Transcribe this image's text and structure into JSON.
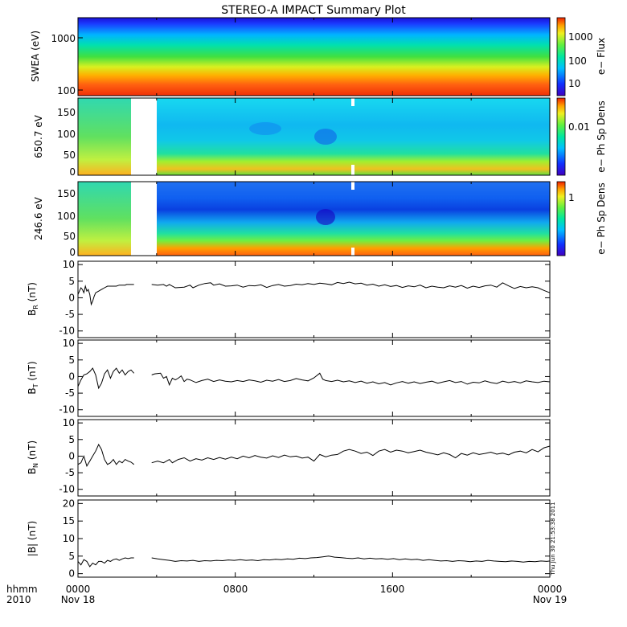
{
  "title": "STEREO-A IMPACT Summary Plot",
  "footer": {
    "axis_label_1": "hhmm",
    "axis_label_2": "2010",
    "x_ticks": [
      "0000",
      "0800",
      "1600",
      "0000"
    ],
    "date_start": "Nov 18",
    "date_end": "Nov 19"
  },
  "timestamp": "Thu Jun 30 21:53:38 2011",
  "chart_data": [
    {
      "type": "heatmap",
      "ylabel": "SWEA (eV)",
      "yscale": "log",
      "yticks": [
        "100",
        "1000"
      ],
      "colorbar": {
        "label": "e− Flux",
        "ticks": [
          "10",
          "100",
          "1000"
        ]
      }
    },
    {
      "type": "heatmap",
      "ylabel": "650.7 eV",
      "ylim": [
        0,
        180
      ],
      "yticks": [
        "0",
        "50",
        "100",
        "150"
      ],
      "colorbar": {
        "label": "e− Ph Sp Dens",
        "ticks": [
          "0.01"
        ]
      }
    },
    {
      "type": "heatmap",
      "ylabel": "246.6 eV",
      "ylim": [
        0,
        180
      ],
      "yticks": [
        "0",
        "50",
        "100",
        "150"
      ],
      "colorbar": {
        "label": "e− Ph Sp Dens",
        "ticks": [
          "1"
        ]
      }
    },
    {
      "type": "line",
      "ylabel": "B",
      "ylabel_sub": "R",
      "ylabel_unit": "(nT)",
      "ylim": [
        -12,
        11
      ],
      "yticks": [
        "10",
        "5",
        "0",
        "-5",
        "-10"
      ],
      "series": [
        {
          "segments": [
            {
              "x": [
                0.0,
                0.25,
                0.5,
                0.75,
                1.0,
                1.25,
                1.5,
                1.75,
                2.0,
                2.25,
                2.5,
                2.75,
                3.0,
                3.5,
                4.0,
                4.5,
                5.0,
                5.5,
                6.0,
                6.5,
                7.0,
                7.5,
                8.0,
                8.25,
                8.5,
                9.0,
                9.5
              ],
              "y": [
                1.0,
                2.0,
                3.0,
                2.5,
                1.5,
                3.5,
                2.0,
                2.5,
                1.0,
                -2.0,
                -1.0,
                0.5,
                1.5,
                2.0,
                2.5,
                3.0,
                3.5,
                3.5,
                3.5,
                3.5,
                3.8,
                3.8,
                3.8,
                4.0,
                4.0,
                4.0,
                4.0
              ]
            },
            {
              "x": [
                12.5,
                13.5,
                14.5,
                15.0,
                15.5,
                16.5,
                18.0,
                19.0,
                19.5,
                20.5,
                21.5,
                22.5,
                23.0,
                24.0,
                25.0,
                26.0,
                27.0,
                28.0,
                29.0,
                30.0,
                31.0,
                32.0,
                33.0,
                34.0,
                35.0,
                36.0,
                37.0,
                38.0,
                39.0,
                40.0,
                41.0,
                42.0,
                43.0,
                44.0,
                45.0,
                46.0,
                47.0,
                48.0,
                49.0,
                50.0,
                51.0,
                52.0,
                53.0,
                54.0,
                55.0,
                56.0,
                57.0,
                58.0,
                59.0,
                60.0,
                61.0,
                62.0,
                63.0,
                64.0,
                65.0,
                66.0,
                67.0,
                68.0,
                69.0,
                70.0,
                71.0,
                72.0,
                73.0,
                74.0,
                75.0,
                76.0,
                77.0,
                78.0,
                79.0,
                80.0
              ],
              "y": [
                4.0,
                3.8,
                4.0,
                3.5,
                4.0,
                3.0,
                3.2,
                3.8,
                3.0,
                3.8,
                4.3,
                4.5,
                3.8,
                4.2,
                3.5,
                3.6,
                3.8,
                3.2,
                3.7,
                3.6,
                3.9,
                3.1,
                3.7,
                4.0,
                3.5,
                3.7,
                4.1,
                3.9,
                4.3,
                4.0,
                4.4,
                4.2,
                3.9,
                4.6,
                4.3,
                4.7,
                4.2,
                4.4,
                3.8,
                4.1,
                3.5,
                3.9,
                3.4,
                3.7,
                3.1,
                3.6,
                3.3,
                3.8,
                3.0,
                3.5,
                3.2,
                3.0,
                3.6,
                3.2,
                3.7,
                2.9,
                3.5,
                3.1,
                3.6,
                3.8,
                3.2,
                4.5,
                3.6,
                2.8,
                3.4,
                3.0,
                3.3,
                3.0,
                2.2,
                1.5
              ]
            }
          ]
        }
      ]
    },
    {
      "type": "line",
      "ylabel": "B",
      "ylabel_sub": "T",
      "ylabel_unit": "(nT)",
      "ylim": [
        -12,
        11
      ],
      "yticks": [
        "10",
        "5",
        "0",
        "-5",
        "-10"
      ],
      "series": [
        {
          "segments": [
            {
              "x": [
                0.0,
                0.5,
                1.0,
                1.5,
                2.0,
                2.5,
                3.0,
                3.5,
                4.0,
                4.5,
                5.0,
                5.5,
                6.0,
                6.5,
                7.0,
                7.5,
                8.0,
                8.5,
                9.0,
                9.5
              ],
              "y": [
                -3.0,
                -1.0,
                0.5,
                0.8,
                1.5,
                2.5,
                0.5,
                -3.5,
                -2.0,
                0.8,
                2.0,
                -0.5,
                1.5,
                2.5,
                1.0,
                2.0,
                0.5,
                1.5,
                2.0,
                1.0
              ]
            },
            {
              "x": [
                12.5,
                13.0,
                14.0,
                14.5,
                15.0,
                15.5,
                16.0,
                16.5,
                17.0,
                17.5,
                18.0,
                18.5,
                19.0,
                20.0,
                21.0,
                22.0,
                23.0,
                24.0,
                25.0,
                26.0,
                27.0,
                28.0,
                29.0,
                30.0,
                31.0,
                32.0,
                33.0,
                34.0,
                35.0,
                36.0,
                37.0,
                38.0,
                39.0,
                40.0,
                41.0,
                41.5,
                42.0,
                43.0,
                44.0,
                45.0,
                46.0,
                47.0,
                48.0,
                49.0,
                50.0,
                51.0,
                52.0,
                53.0,
                54.0,
                55.0,
                56.0,
                57.0,
                58.0,
                59.0,
                60.0,
                61.0,
                62.0,
                63.0,
                64.0,
                65.0,
                66.0,
                67.0,
                68.0,
                69.0,
                70.0,
                71.0,
                72.0,
                73.0,
                74.0,
                75.0,
                76.0,
                77.0,
                78.0,
                79.0,
                80.0
              ],
              "y": [
                0.5,
                0.8,
                1.0,
                -0.5,
                0.0,
                -2.5,
                -0.5,
                -1.0,
                -0.5,
                0.2,
                -1.5,
                -0.8,
                -1.0,
                -1.8,
                -1.2,
                -0.8,
                -1.5,
                -1.0,
                -1.4,
                -1.6,
                -1.2,
                -1.5,
                -1.0,
                -1.3,
                -1.7,
                -1.1,
                -1.4,
                -0.9,
                -1.5,
                -1.2,
                -0.6,
                -1.0,
                -1.3,
                -0.4,
                1.0,
                -0.8,
                -1.2,
                -1.5,
                -1.1,
                -1.6,
                -1.3,
                -1.8,
                -1.4,
                -2.0,
                -1.6,
                -2.2,
                -1.8,
                -2.5,
                -1.9,
                -1.5,
                -2.0,
                -1.6,
                -2.1,
                -1.7,
                -1.4,
                -2.0,
                -1.6,
                -1.2,
                -1.8,
                -1.5,
                -2.3,
                -1.7,
                -1.9,
                -1.3,
                -1.8,
                -2.1,
                -1.4,
                -1.8,
                -1.5,
                -1.9,
                -1.3,
                -1.6,
                -1.8,
                -1.4,
                -1.6
              ]
            }
          ]
        }
      ]
    },
    {
      "type": "line",
      "ylabel": "B",
      "ylabel_sub": "N",
      "ylabel_unit": "(nT)",
      "ylim": [
        -12,
        11
      ],
      "yticks": [
        "10",
        "5",
        "0",
        "-5",
        "-10"
      ],
      "series": [
        {
          "segments": [
            {
              "x": [
                0.0,
                0.5,
                1.0,
                1.5,
                2.0,
                2.5,
                3.0,
                3.5,
                4.0,
                4.5,
                5.0,
                5.5,
                6.0,
                6.5,
                7.0,
                7.5,
                8.0,
                8.5,
                9.0,
                9.5
              ],
              "y": [
                -2.5,
                -2.0,
                0.0,
                -3.0,
                -1.5,
                0.0,
                1.5,
                3.5,
                2.0,
                -1.0,
                -2.5,
                -2.0,
                -1.0,
                -2.5,
                -1.5,
                -2.0,
                -1.0,
                -1.5,
                -1.8,
                -2.5
              ]
            },
            {
              "x": [
                12.5,
                13.5,
                14.5,
                15.5,
                16.0,
                17.0,
                18.0,
                19.0,
                20.0,
                21.0,
                22.0,
                23.0,
                24.0,
                25.0,
                26.0,
                27.0,
                28.0,
                29.0,
                30.0,
                31.0,
                32.0,
                33.0,
                34.0,
                35.0,
                36.0,
                37.0,
                38.0,
                39.0,
                40.0,
                41.0,
                42.0,
                43.0,
                44.0,
                45.0,
                46.0,
                47.0,
                48.0,
                49.0,
                50.0,
                51.0,
                52.0,
                53.0,
                54.0,
                55.0,
                56.0,
                57.0,
                58.0,
                59.0,
                60.0,
                61.0,
                62.0,
                63.0,
                64.0,
                65.0,
                66.0,
                67.0,
                68.0,
                69.0,
                70.0,
                71.0,
                72.0,
                73.0,
                74.0,
                75.0,
                76.0,
                77.0,
                78.0,
                79.0,
                80.0
              ],
              "y": [
                -2.0,
                -1.5,
                -2.0,
                -1.0,
                -2.0,
                -1.0,
                -0.5,
                -1.5,
                -0.8,
                -1.2,
                -0.5,
                -1.0,
                -0.4,
                -0.9,
                -0.3,
                -0.8,
                0.0,
                -0.5,
                0.2,
                -0.3,
                -0.6,
                0.1,
                -0.4,
                0.3,
                -0.2,
                0.0,
                -0.6,
                -0.3,
                -1.5,
                0.5,
                -0.2,
                0.3,
                0.5,
                1.5,
                2.0,
                1.5,
                0.8,
                1.2,
                0.2,
                1.5,
                2.0,
                1.2,
                1.8,
                1.5,
                1.0,
                1.4,
                1.8,
                1.2,
                0.8,
                0.4,
                1.0,
                0.5,
                -0.5,
                0.8,
                0.3,
                1.0,
                0.5,
                0.8,
                1.2,
                0.6,
                0.9,
                0.4,
                1.2,
                1.5,
                1.0,
                2.0,
                1.3,
                2.5,
                3.0
              ]
            }
          ]
        }
      ]
    },
    {
      "type": "line",
      "ylabel": "|B| (nT)",
      "ylim": [
        -1,
        21
      ],
      "yticks": [
        "20",
        "15",
        "10",
        "5",
        "0"
      ],
      "series": [
        {
          "segments": [
            {
              "x": [
                0.0,
                0.5,
                1.0,
                1.5,
                2.0,
                2.5,
                3.0,
                3.5,
                4.0,
                4.5,
                5.0,
                5.5,
                6.0,
                6.5,
                7.0,
                7.5,
                8.0,
                8.5,
                9.0,
                9.5
              ],
              "y": [
                3.5,
                2.5,
                4.0,
                3.5,
                2.0,
                3.0,
                2.5,
                3.5,
                3.5,
                3.0,
                3.8,
                3.5,
                4.0,
                4.2,
                3.8,
                4.2,
                4.5,
                4.3,
                4.5,
                4.5
              ]
            },
            {
              "x": [
                12.5,
                13.5,
                14.5,
                15.5,
                16.5,
                17.5,
                18.5,
                19.5,
                20.5,
                21.5,
                22.5,
                23.5,
                24.5,
                25.5,
                26.5,
                27.5,
                28.5,
                29.5,
                30.5,
                31.5,
                32.5,
                33.5,
                34.5,
                35.5,
                36.5,
                37.5,
                38.5,
                39.5,
                40.5,
                41.5,
                42.5,
                43.5,
                44.5,
                45.5,
                46.5,
                47.5,
                48.5,
                49.5,
                50.5,
                51.5,
                52.5,
                53.5,
                54.5,
                55.5,
                56.5,
                57.5,
                58.5,
                59.5,
                60.5,
                61.5,
                62.5,
                63.5,
                64.5,
                65.5,
                66.5,
                67.5,
                68.5,
                69.5,
                70.5,
                71.5,
                72.5,
                73.5,
                74.5,
                75.5,
                76.5,
                77.5,
                78.5,
                79.5,
                80.0
              ],
              "y": [
                4.5,
                4.2,
                4.0,
                3.8,
                3.5,
                3.7,
                3.6,
                3.8,
                3.5,
                3.7,
                3.6,
                3.8,
                3.7,
                3.9,
                3.8,
                4.0,
                3.8,
                3.9,
                3.7,
                4.0,
                3.9,
                4.1,
                4.0,
                4.2,
                4.1,
                4.4,
                4.3,
                4.5,
                4.6,
                4.8,
                5.0,
                4.7,
                4.6,
                4.4,
                4.3,
                4.5,
                4.2,
                4.4,
                4.2,
                4.3,
                4.1,
                4.3,
                4.0,
                4.2,
                4.0,
                4.1,
                3.8,
                4.0,
                3.8,
                3.6,
                3.7,
                3.5,
                3.7,
                3.6,
                3.4,
                3.6,
                3.5,
                3.8,
                3.6,
                3.5,
                3.4,
                3.6,
                3.5,
                3.3,
                3.5,
                3.4,
                3.6,
                3.5,
                3.6
              ]
            }
          ]
        }
      ]
    }
  ]
}
